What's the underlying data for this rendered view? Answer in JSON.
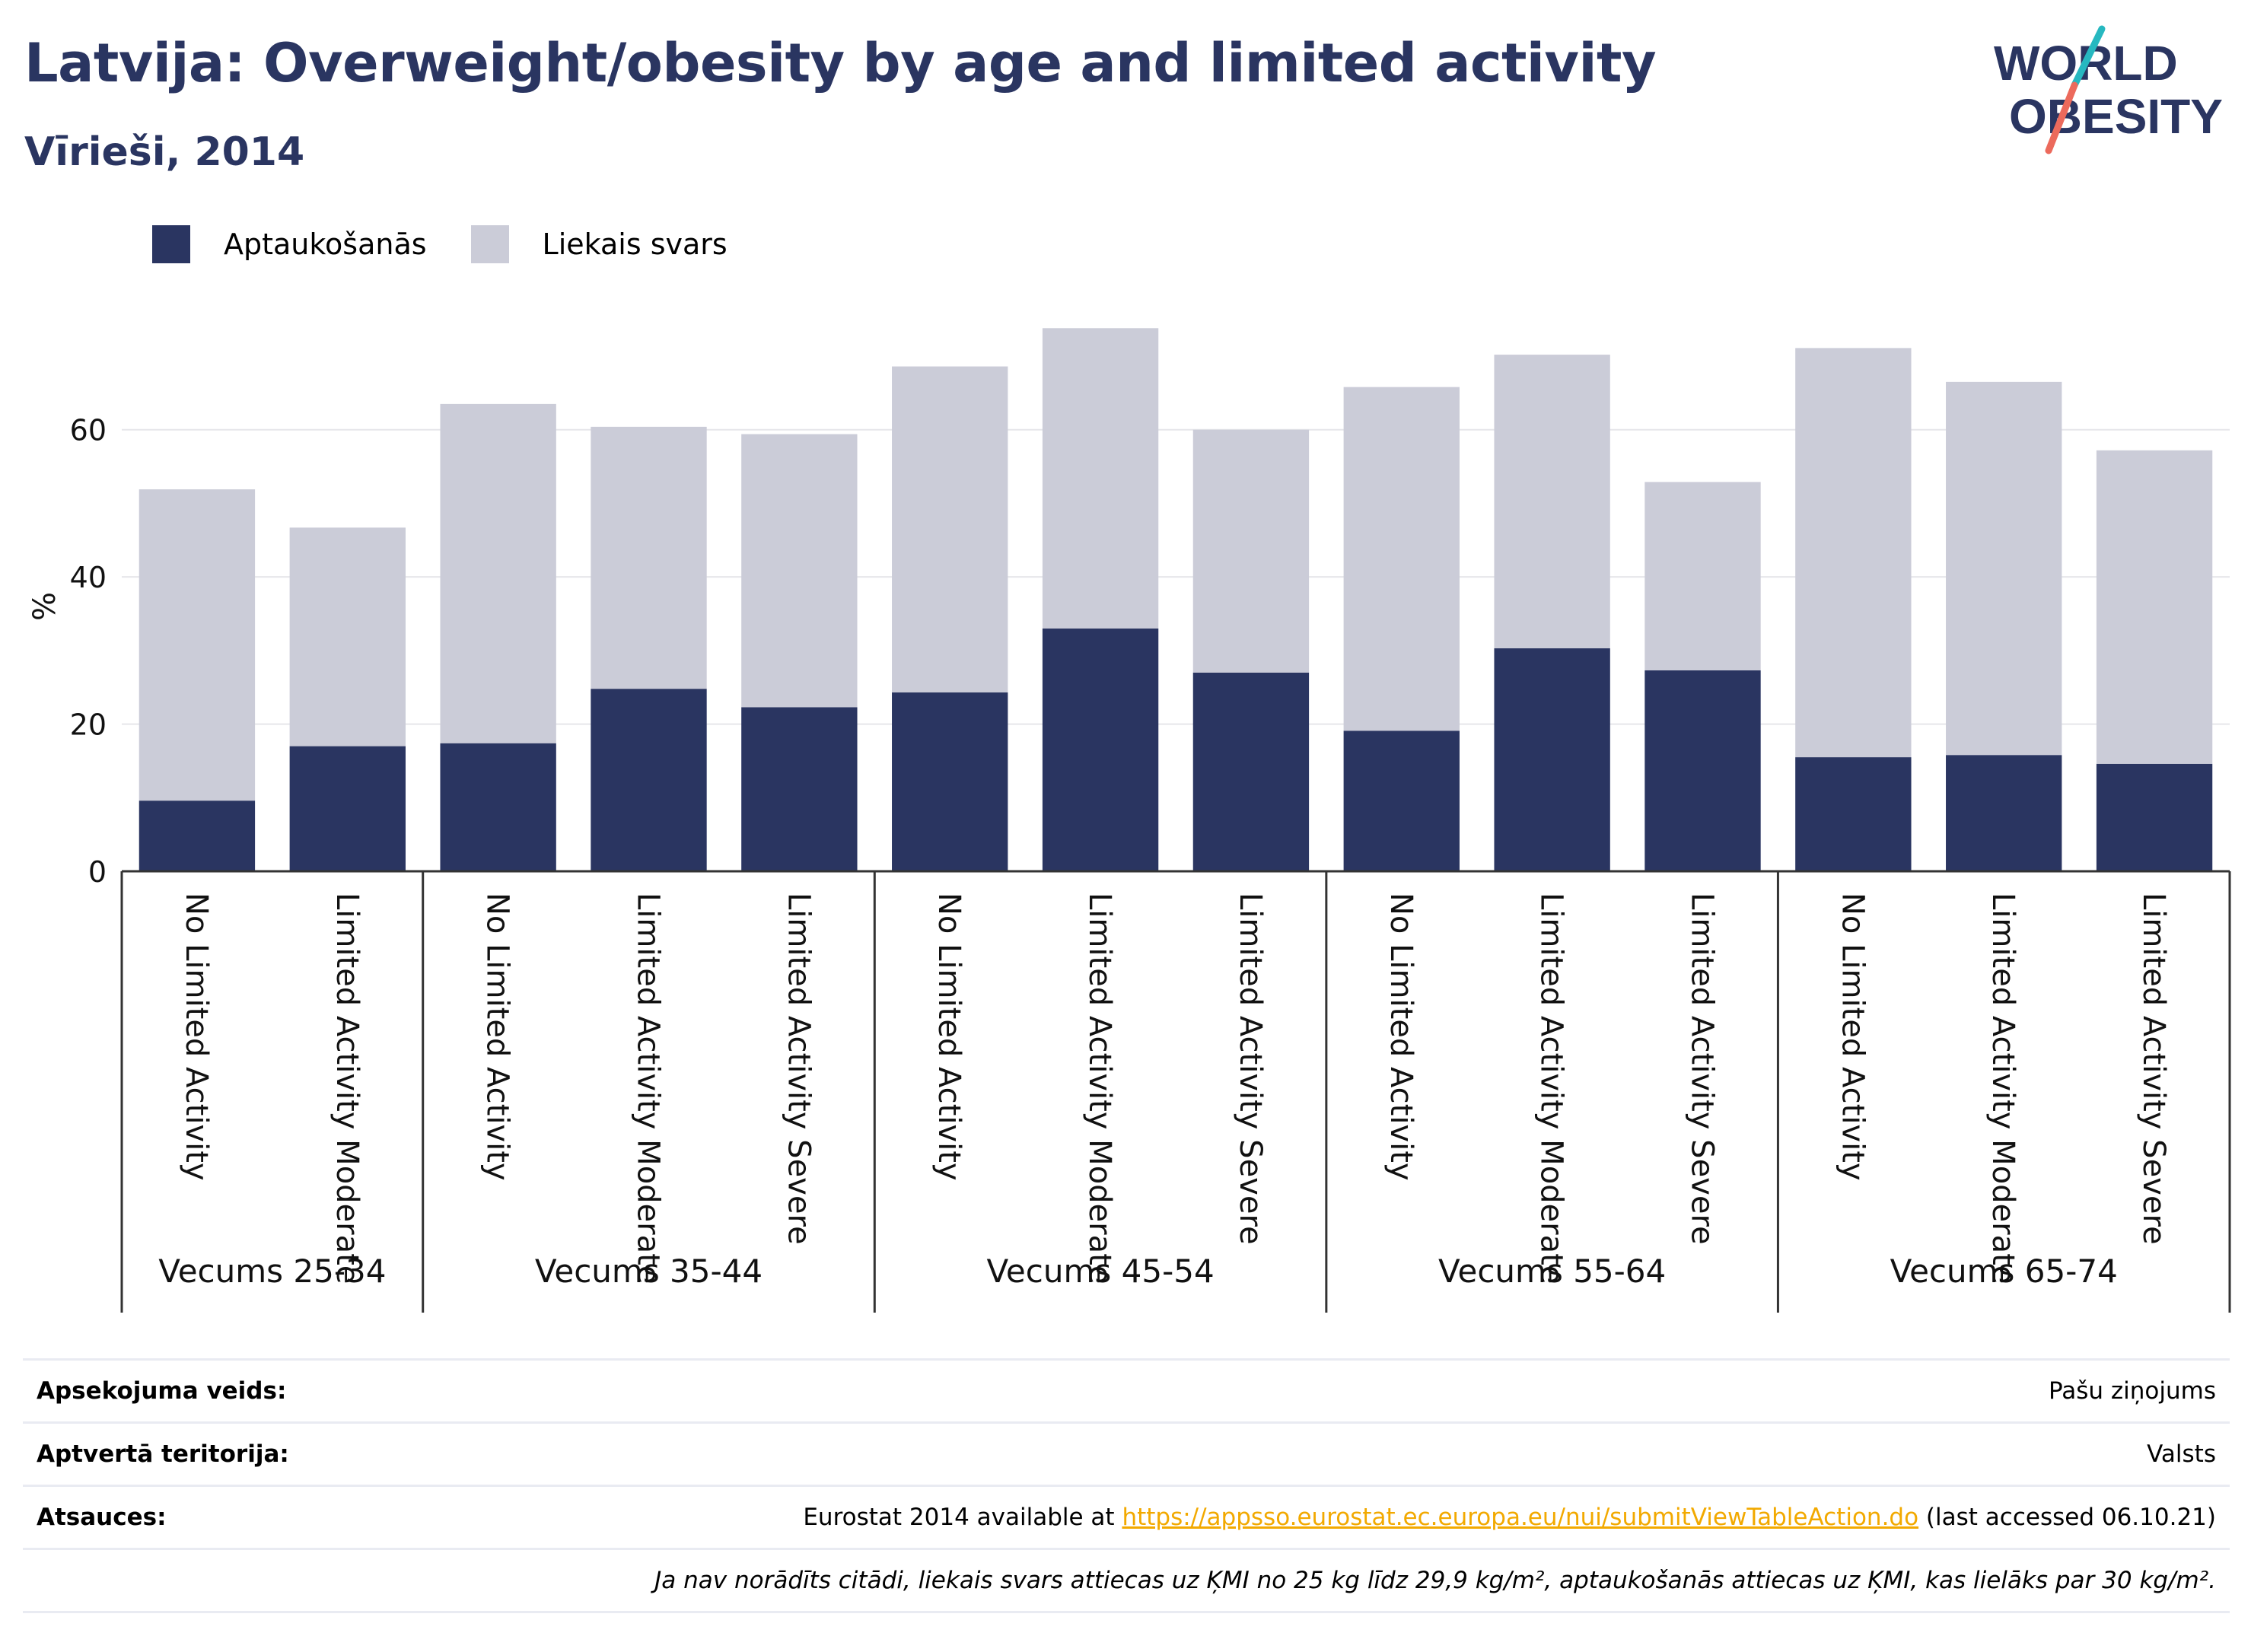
{
  "header": {
    "title": "Latvija: Overweight/obesity by age and limited activity",
    "subtitle": "Vīrieši, 2014"
  },
  "logo": {
    "line1": "WORLD",
    "line2": "OBESITY"
  },
  "legend": [
    {
      "label": "Aptaukošanās",
      "color": "#2a3561"
    },
    {
      "label": "Liekais svars",
      "color": "#cbccd8"
    }
  ],
  "chart_data": {
    "type": "bar",
    "stacked": true,
    "ylabel": "%",
    "ylim": [
      0,
      76
    ],
    "yticks": [
      0,
      20,
      40,
      60
    ],
    "grid": true,
    "legend_position": "top-left",
    "groups": [
      {
        "label": "Vecums 25-34",
        "categories": [
          "No Limited Activity",
          "Limited Activity Moderate"
        ]
      },
      {
        "label": "Vecums 35-44",
        "categories": [
          "No Limited Activity",
          "Limited Activity Moderate",
          "Limited Activity Severe"
        ]
      },
      {
        "label": "Vecums 45-54",
        "categories": [
          "No Limited Activity",
          "Limited Activity Moderate",
          "Limited Activity Severe"
        ]
      },
      {
        "label": "Vecums 55-64",
        "categories": [
          "No Limited Activity",
          "Limited Activity Moderate",
          "Limited Activity Severe"
        ]
      },
      {
        "label": "Vecums 65-74",
        "categories": [
          "No Limited Activity",
          "Limited Activity Moderate",
          "Limited Activity Severe"
        ]
      }
    ],
    "series": [
      {
        "name": "Aptaukošanās",
        "color": "#2a3561",
        "values": [
          9.6,
          17.0,
          17.4,
          24.8,
          22.3,
          24.3,
          33.0,
          27.0,
          19.1,
          30.3,
          27.3,
          15.5,
          15.8,
          14.6
        ]
      },
      {
        "name": "Liekais svars",
        "color": "#cbccd8",
        "values": [
          42.3,
          29.7,
          46.1,
          35.6,
          37.1,
          44.3,
          40.8,
          33.0,
          46.7,
          39.9,
          25.6,
          55.6,
          50.7,
          42.6
        ]
      }
    ]
  },
  "meta": {
    "rows": [
      {
        "key": "Apsekojuma veids:",
        "value": "Pašu ziņojums"
      },
      {
        "key": "Aptvertā teritorija:",
        "value": "Valsts"
      }
    ],
    "source": {
      "key": "Atsauces:",
      "prefix": "Eurostat 2014 available at ",
      "link": "https://appsso.eurostat.ec.europa.eu/nui/submitViewTableAction.do",
      "suffix": " (last accessed 06.10.21)"
    },
    "note": "Ja nav norādīts citādi, liekais svars attiecas uz ĶMI no 25 kg līdz 29,9 kg/m², aptaukošanās attiecas uz ĶMI, kas lielāks par 30 kg/m²."
  }
}
